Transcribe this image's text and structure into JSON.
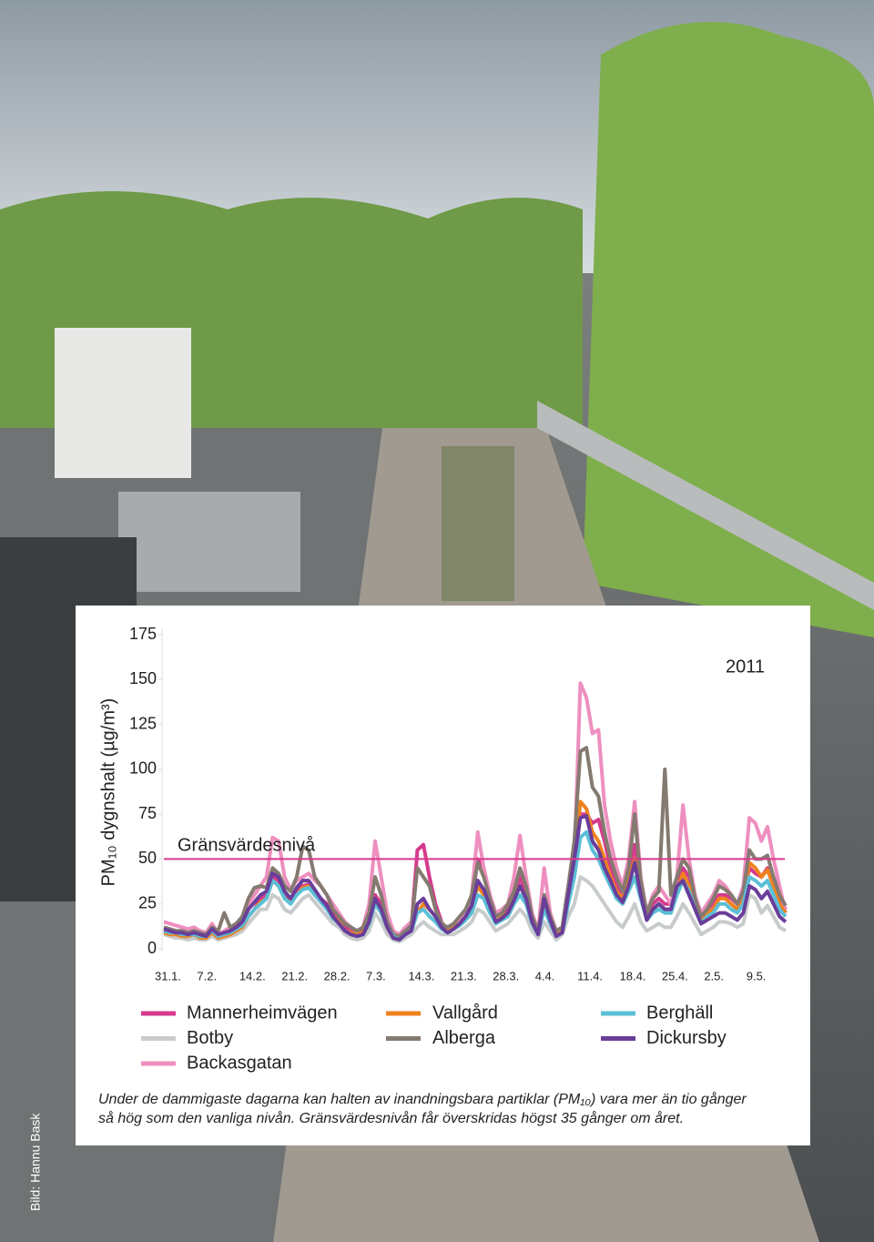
{
  "chart_data": {
    "type": "line",
    "y_label": "PM₁₀ dygnshalt (µg/m³)",
    "annotation": "2011",
    "threshold": {
      "value": 50,
      "label": "Gränsvärdesnivå",
      "color": "#d63a8c"
    },
    "categories": [
      "31.1.",
      null,
      null,
      null,
      null,
      null,
      null,
      "7.2.",
      null,
      null,
      null,
      null,
      null,
      null,
      "14.2.",
      null,
      null,
      null,
      null,
      null,
      null,
      "21.2.",
      null,
      null,
      null,
      null,
      null,
      null,
      "28.2.",
      null,
      null,
      null,
      null,
      null,
      null,
      "7.3.",
      null,
      null,
      null,
      null,
      null,
      null,
      "14.3.",
      null,
      null,
      null,
      null,
      null,
      null,
      "21.3.",
      null,
      null,
      null,
      null,
      null,
      null,
      "28.3.",
      null,
      null,
      null,
      null,
      null,
      null,
      "4.4.",
      null,
      null,
      null,
      null,
      null,
      null,
      "11.4.",
      null,
      null,
      null,
      null,
      null,
      null,
      "18.4.",
      null,
      null,
      null,
      null,
      null,
      null,
      "25.4.",
      null,
      null,
      null,
      null,
      null,
      null,
      "2.5.",
      null,
      null,
      null,
      null,
      null,
      null,
      "9.5.",
      null,
      null,
      null,
      null,
      null
    ],
    "ylim": [
      0,
      175
    ],
    "yticks": [
      0,
      25,
      50,
      75,
      100,
      125,
      150,
      175
    ],
    "series": [
      {
        "name": "Mannerheimvägen",
        "color": "#d63a8c",
        "values": [
          10,
          9,
          8,
          8,
          7,
          8,
          7,
          6,
          10,
          6,
          8,
          9,
          10,
          12,
          18,
          22,
          28,
          30,
          40,
          38,
          30,
          28,
          32,
          35,
          36,
          32,
          28,
          25,
          20,
          16,
          12,
          10,
          8,
          10,
          18,
          30,
          25,
          15,
          8,
          6,
          10,
          12,
          55,
          58,
          40,
          25,
          15,
          10,
          12,
          15,
          18,
          25,
          50,
          45,
          30,
          18,
          20,
          22,
          30,
          40,
          30,
          18,
          10,
          30,
          18,
          10,
          12,
          30,
          45,
          75,
          75,
          70,
          72,
          60,
          45,
          35,
          30,
          40,
          58,
          35,
          20,
          25,
          28,
          25,
          25,
          35,
          45,
          40,
          28,
          18,
          22,
          25,
          30,
          30,
          28,
          25,
          30,
          45,
          42,
          40,
          45,
          38,
          28,
          22
        ]
      },
      {
        "name": "Botby",
        "color": "#c8cbcc",
        "values": [
          8,
          7,
          6,
          6,
          5,
          6,
          5,
          5,
          7,
          5,
          6,
          7,
          8,
          10,
          14,
          18,
          22,
          22,
          30,
          28,
          22,
          20,
          24,
          28,
          30,
          26,
          22,
          18,
          14,
          12,
          8,
          6,
          5,
          6,
          10,
          20,
          15,
          8,
          5,
          4,
          6,
          8,
          12,
          15,
          12,
          10,
          8,
          8,
          8,
          10,
          12,
          15,
          22,
          20,
          15,
          10,
          12,
          14,
          18,
          22,
          18,
          10,
          6,
          15,
          10,
          5,
          8,
          18,
          25,
          40,
          38,
          35,
          30,
          25,
          20,
          15,
          12,
          18,
          25,
          15,
          10,
          12,
          14,
          12,
          12,
          18,
          25,
          20,
          14,
          8,
          10,
          12,
          15,
          15,
          14,
          12,
          14,
          30,
          28,
          20,
          24,
          18,
          12,
          10
        ]
      },
      {
        "name": "Backasgatan",
        "color": "#ee8fbf",
        "values": [
          15,
          14,
          13,
          12,
          11,
          12,
          10,
          9,
          14,
          8,
          10,
          12,
          14,
          18,
          25,
          30,
          35,
          40,
          62,
          60,
          40,
          33,
          38,
          40,
          42,
          38,
          35,
          30,
          25,
          20,
          15,
          12,
          10,
          12,
          25,
          60,
          40,
          20,
          10,
          8,
          12,
          15,
          20,
          25,
          22,
          18,
          15,
          10,
          12,
          15,
          20,
          30,
          65,
          45,
          30,
          20,
          22,
          25,
          40,
          63,
          40,
          20,
          10,
          45,
          20,
          10,
          12,
          35,
          50,
          148,
          140,
          120,
          122,
          80,
          60,
          45,
          35,
          50,
          82,
          40,
          20,
          30,
          35,
          30,
          25,
          40,
          80,
          50,
          30,
          20,
          25,
          30,
          38,
          35,
          30,
          25,
          35,
          73,
          70,
          60,
          68,
          50,
          35,
          20
        ]
      },
      {
        "name": "Vallgård",
        "color": "#f0821e",
        "values": [
          9,
          8,
          8,
          7,
          7,
          8,
          6,
          6,
          9,
          6,
          7,
          8,
          10,
          12,
          18,
          22,
          26,
          28,
          38,
          35,
          28,
          26,
          30,
          34,
          35,
          30,
          27,
          24,
          18,
          15,
          10,
          9,
          8,
          9,
          15,
          25,
          20,
          12,
          8,
          6,
          9,
          11,
          20,
          25,
          22,
          18,
          12,
          10,
          12,
          14,
          18,
          22,
          35,
          30,
          22,
          15,
          18,
          20,
          28,
          35,
          28,
          16,
          9,
          25,
          15,
          8,
          10,
          28,
          45,
          82,
          78,
          65,
          60,
          50,
          40,
          32,
          28,
          38,
          50,
          30,
          18,
          22,
          25,
          22,
          22,
          32,
          42,
          35,
          25,
          16,
          20,
          22,
          28,
          28,
          25,
          22,
          28,
          48,
          45,
          40,
          44,
          35,
          25,
          20
        ]
      },
      {
        "name": "Alberga",
        "color": "#857a70",
        "values": [
          12,
          11,
          10,
          10,
          9,
          10,
          9,
          8,
          12,
          10,
          20,
          12,
          14,
          18,
          28,
          34,
          35,
          34,
          45,
          42,
          35,
          32,
          40,
          57,
          55,
          40,
          35,
          30,
          22,
          18,
          14,
          12,
          10,
          12,
          20,
          40,
          30,
          15,
          8,
          7,
          10,
          13,
          45,
          40,
          35,
          22,
          14,
          12,
          14,
          18,
          22,
          30,
          48,
          40,
          28,
          18,
          20,
          25,
          32,
          45,
          35,
          18,
          10,
          30,
          18,
          10,
          12,
          35,
          60,
          110,
          112,
          90,
          85,
          65,
          50,
          40,
          32,
          45,
          75,
          38,
          20,
          28,
          32,
          100,
          30,
          40,
          50,
          45,
          28,
          18,
          22,
          28,
          35,
          33,
          30,
          25,
          32,
          55,
          50,
          50,
          52,
          40,
          30,
          24
        ]
      },
      {
        "name": "Berghäll",
        "color": "#5bbfd6",
        "values": [
          10,
          9,
          9,
          8,
          8,
          8,
          7,
          7,
          10,
          7,
          8,
          9,
          11,
          13,
          18,
          22,
          25,
          28,
          38,
          35,
          28,
          25,
          30,
          33,
          34,
          30,
          26,
          22,
          17,
          14,
          10,
          8,
          7,
          8,
          14,
          25,
          20,
          12,
          7,
          5,
          8,
          10,
          20,
          22,
          18,
          15,
          11,
          9,
          11,
          13,
          16,
          20,
          30,
          28,
          20,
          14,
          16,
          18,
          25,
          30,
          25,
          14,
          8,
          22,
          14,
          7,
          9,
          25,
          40,
          62,
          65,
          55,
          50,
          42,
          35,
          28,
          25,
          32,
          40,
          28,
          16,
          20,
          22,
          20,
          20,
          30,
          38,
          32,
          22,
          14,
          18,
          20,
          25,
          25,
          22,
          20,
          25,
          40,
          38,
          35,
          38,
          30,
          22,
          18
        ]
      },
      {
        "name": "Dickursby",
        "color": "#6a3d9a",
        "values": [
          11,
          10,
          9,
          9,
          8,
          9,
          8,
          7,
          11,
          8,
          9,
          10,
          12,
          15,
          22,
          26,
          30,
          32,
          42,
          40,
          32,
          28,
          34,
          38,
          38,
          33,
          28,
          24,
          18,
          14,
          10,
          8,
          7,
          8,
          15,
          28,
          22,
          12,
          6,
          5,
          8,
          10,
          25,
          28,
          22,
          18,
          12,
          9,
          11,
          14,
          18,
          24,
          38,
          33,
          24,
          15,
          17,
          20,
          27,
          35,
          28,
          15,
          8,
          28,
          16,
          7,
          9,
          30,
          50,
          73,
          74,
          60,
          55,
          45,
          38,
          30,
          26,
          35,
          48,
          30,
          16,
          22,
          25,
          22,
          22,
          35,
          38,
          30,
          22,
          14,
          16,
          18,
          20,
          20,
          18,
          16,
          20,
          35,
          33,
          28,
          32,
          25,
          18,
          15
        ]
      }
    ]
  },
  "caption": [
    "Under de dammigaste dagarna kan halten av inandningsbara partiklar (PM₁₀) vara mer än tio gånger",
    "så hög som den vanliga nivån. Gränsvärdesnivån får överskridas högst 35 gånger om året."
  ],
  "photo_credit": "Bild:  Hannu Bask"
}
